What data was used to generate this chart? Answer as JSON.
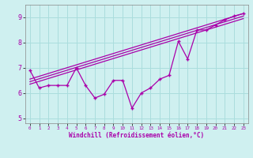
{
  "title": "",
  "xlabel": "Windchill (Refroidissement éolien,°C)",
  "background_color": "#cff0f0",
  "grid_color": "#aadddd",
  "line_color": "#aa00aa",
  "xlim": [
    -0.5,
    23.5
  ],
  "ylim": [
    4.8,
    9.5
  ],
  "xticks": [
    0,
    1,
    2,
    3,
    4,
    5,
    6,
    7,
    8,
    9,
    10,
    11,
    12,
    13,
    14,
    15,
    16,
    17,
    18,
    19,
    20,
    21,
    22,
    23
  ],
  "yticks": [
    5,
    6,
    7,
    8,
    9
  ],
  "series1_x": [
    0,
    1,
    2,
    3,
    4,
    5,
    6,
    7,
    8,
    9,
    10,
    11,
    12,
    13,
    14,
    15,
    16,
    17,
    18,
    19,
    20,
    21,
    22,
    23
  ],
  "series1_y": [
    6.9,
    6.2,
    6.3,
    6.3,
    6.3,
    7.0,
    6.3,
    5.8,
    5.95,
    6.5,
    6.5,
    5.4,
    6.0,
    6.2,
    6.55,
    6.7,
    8.05,
    7.35,
    8.5,
    8.5,
    8.7,
    8.9,
    9.05,
    9.15
  ],
  "trend1_x": [
    0,
    23
  ],
  "trend1_y": [
    6.55,
    9.15
  ],
  "trend2_x": [
    0,
    23
  ],
  "trend2_y": [
    6.45,
    9.05
  ],
  "trend3_x": [
    0,
    23
  ],
  "trend3_y": [
    6.35,
    8.95
  ]
}
